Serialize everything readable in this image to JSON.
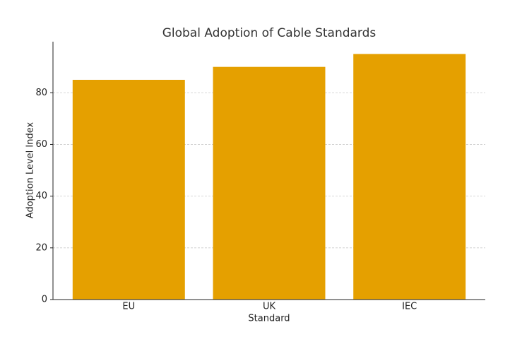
{
  "chart_data": {
    "type": "bar",
    "title": "Global Adoption of Cable Standards",
    "x_label": "Standard",
    "y_label": "Adoption Level Index",
    "categories": [
      "EU",
      "UK",
      "IEC"
    ],
    "values": [
      85,
      90,
      95
    ],
    "color": "#e5a000",
    "ylim": [
      0,
      99.75
    ],
    "yticks": [
      0,
      20,
      40,
      60,
      80
    ],
    "grid": true
  }
}
